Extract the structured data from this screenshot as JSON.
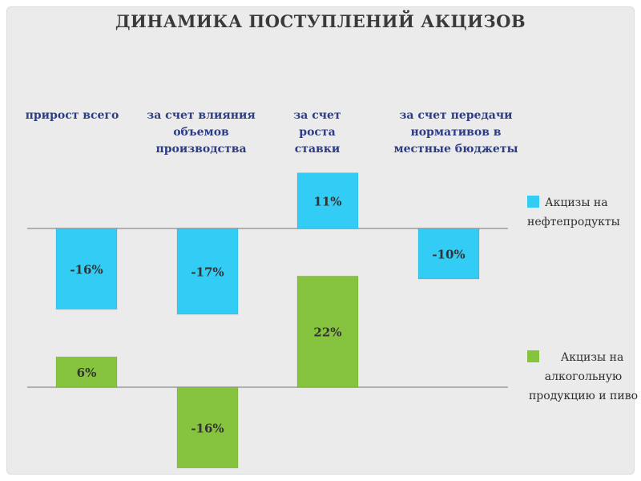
{
  "chart_data": {
    "type": "bar",
    "title": "ДИНАМИКА ПОСТУПЛЕНИЙ АКЦИЗОВ",
    "categories": [
      "прирост всего",
      "за счет влияния объемов производства",
      "за счет роста ставки",
      "за счет передачи нормативов в местные бюджеты"
    ],
    "series": [
      {
        "name": "Акцизы на нефтепродукты",
        "color": "#33ccf5",
        "values": [
          -16,
          -17,
          11,
          -10
        ],
        "labels": [
          "-16%",
          "-17%",
          "11%",
          "-10%"
        ]
      },
      {
        "name": "Акцизы на алкогольную продукцию и пиво",
        "color": "#86c440",
        "values": [
          6,
          -16,
          22,
          null
        ],
        "labels": [
          "6%",
          "-16%",
          "22%",
          ""
        ]
      }
    ],
    "unit": "%",
    "grid": false,
    "legend_position": "right"
  }
}
